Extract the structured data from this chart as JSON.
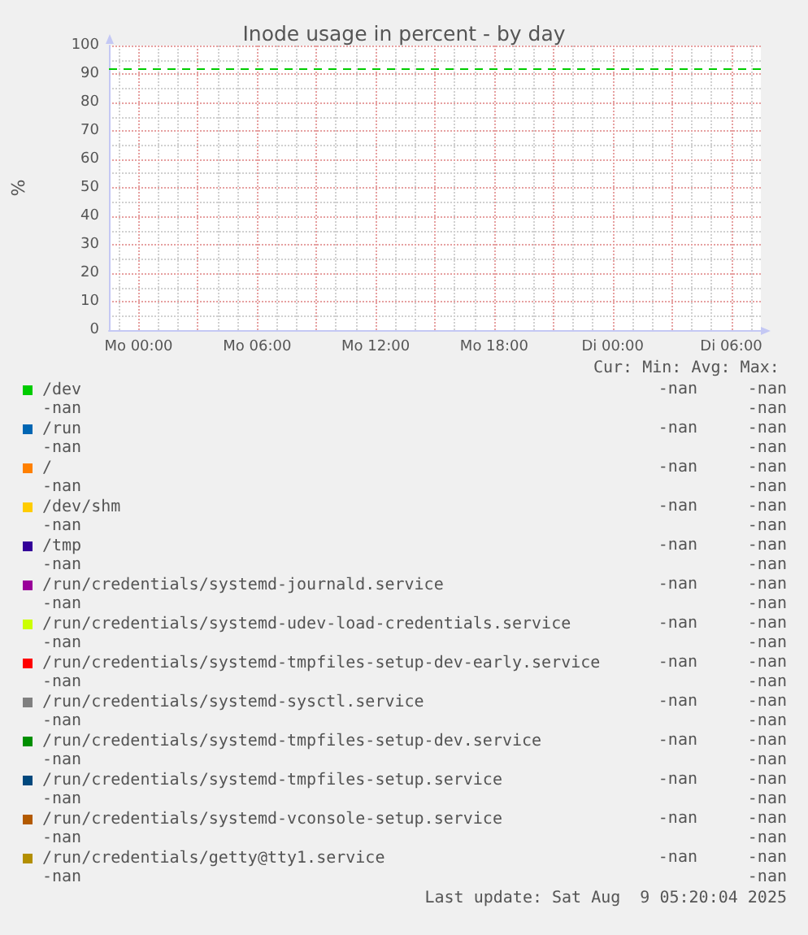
{
  "chart_data": {
    "type": "line",
    "title": "Inode usage in percent - by day",
    "ylabel": "%",
    "legend_title": "Cur: Min: Avg: Max:",
    "categories": [
      null,
      "Mo 00:00",
      null,
      null,
      null,
      null,
      null,
      "Mo 06:00",
      null,
      null,
      null,
      null,
      null,
      "Mo 12:00",
      null,
      null,
      null,
      null,
      null,
      "Mo 18:00",
      null,
      null,
      null,
      null,
      null,
      "Di 00:00",
      null,
      null,
      null,
      null,
      null,
      "Di 06:00",
      null
    ],
    "series": [
      {
        "name": "/dev",
        "color": "#00cc00",
        "values": [
          null,
          null,
          null,
          null,
          null,
          null,
          null,
          null,
          null,
          null,
          null,
          null,
          null,
          null,
          null,
          null,
          null,
          null,
          null,
          null,
          null,
          null,
          null,
          null,
          null,
          null,
          null,
          null,
          null,
          null,
          null,
          null,
          null
        ]
      },
      {
        "name": "/run",
        "color": "#0066b3",
        "values": [
          null,
          null,
          null,
          null,
          null,
          null,
          null,
          null,
          null,
          null,
          null,
          null,
          null,
          null,
          null,
          null,
          null,
          null,
          null,
          null,
          null,
          null,
          null,
          null,
          null,
          null,
          null,
          null,
          null,
          null,
          null,
          null,
          null
        ]
      },
      {
        "name": "/",
        "color": "#ff8000",
        "values": [
          null,
          null,
          null,
          null,
          null,
          null,
          null,
          null,
          null,
          null,
          null,
          null,
          null,
          null,
          null,
          null,
          null,
          null,
          null,
          null,
          null,
          null,
          null,
          null,
          null,
          null,
          null,
          null,
          null,
          null,
          null,
          null,
          null
        ]
      },
      {
        "name": "/dev/shm",
        "color": "#ffcc00",
        "values": [
          null,
          null,
          null,
          null,
          null,
          null,
          null,
          null,
          null,
          null,
          null,
          null,
          null,
          null,
          null,
          null,
          null,
          null,
          null,
          null,
          null,
          null,
          null,
          null,
          null,
          null,
          null,
          null,
          null,
          null,
          null,
          null,
          null
        ]
      },
      {
        "name": "/tmp",
        "color": "#330099",
        "values": [
          null,
          null,
          null,
          null,
          null,
          null,
          null,
          null,
          null,
          null,
          null,
          null,
          null,
          null,
          null,
          null,
          null,
          null,
          null,
          null,
          null,
          null,
          null,
          null,
          null,
          null,
          null,
          null,
          null,
          null,
          null,
          null,
          null
        ]
      },
      {
        "name": "/run/credentials/systemd-journald.service",
        "color": "#990099",
        "values": [
          null,
          null,
          null,
          null,
          null,
          null,
          null,
          null,
          null,
          null,
          null,
          null,
          null,
          null,
          null,
          null,
          null,
          null,
          null,
          null,
          null,
          null,
          null,
          null,
          null,
          null,
          null,
          null,
          null,
          null,
          null,
          null,
          null
        ]
      },
      {
        "name": "/run/credentials/systemd-udev-load-credentials.service",
        "color": "#ccff00",
        "values": [
          null,
          null,
          null,
          null,
          null,
          null,
          null,
          null,
          null,
          null,
          null,
          null,
          null,
          null,
          null,
          null,
          null,
          null,
          null,
          null,
          null,
          null,
          null,
          null,
          null,
          null,
          null,
          null,
          null,
          null,
          null,
          null,
          null
        ]
      },
      {
        "name": "/run/credentials/systemd-tmpfiles-setup-dev-early.service",
        "color": "#ff0000",
        "values": [
          null,
          null,
          null,
          null,
          null,
          null,
          null,
          null,
          null,
          null,
          null,
          null,
          null,
          null,
          null,
          null,
          null,
          null,
          null,
          null,
          null,
          null,
          null,
          null,
          null,
          null,
          null,
          null,
          null,
          null,
          null,
          null,
          null
        ]
      },
      {
        "name": "/run/credentials/systemd-sysctl.service",
        "color": "#808080",
        "values": [
          null,
          null,
          null,
          null,
          null,
          null,
          null,
          null,
          null,
          null,
          null,
          null,
          null,
          null,
          null,
          null,
          null,
          null,
          null,
          null,
          null,
          null,
          null,
          null,
          null,
          null,
          null,
          null,
          null,
          null,
          null,
          null,
          null
        ]
      },
      {
        "name": "/run/credentials/systemd-tmpfiles-setup-dev.service",
        "color": "#008f00",
        "values": [
          null,
          null,
          null,
          null,
          null,
          null,
          null,
          null,
          null,
          null,
          null,
          null,
          null,
          null,
          null,
          null,
          null,
          null,
          null,
          null,
          null,
          null,
          null,
          null,
          null,
          null,
          null,
          null,
          null,
          null,
          null,
          null,
          null
        ]
      },
      {
        "name": "/run/credentials/systemd-tmpfiles-setup.service",
        "color": "#00487d",
        "values": [
          null,
          null,
          null,
          null,
          null,
          null,
          null,
          null,
          null,
          null,
          null,
          null,
          null,
          null,
          null,
          null,
          null,
          null,
          null,
          null,
          null,
          null,
          null,
          null,
          null,
          null,
          null,
          null,
          null,
          null,
          null,
          null,
          null
        ]
      },
      {
        "name": "/run/credentials/systemd-vconsole-setup.service",
        "color": "#b35a00",
        "values": [
          null,
          null,
          null,
          null,
          null,
          null,
          null,
          null,
          null,
          null,
          null,
          null,
          null,
          null,
          null,
          null,
          null,
          null,
          null,
          null,
          null,
          null,
          null,
          null,
          null,
          null,
          null,
          null,
          null,
          null,
          null,
          null,
          null
        ]
      },
      {
        "name": "/run/credentials/getty@tty1.service",
        "color": "#b38f00",
        "values": [
          null,
          null,
          null,
          null,
          null,
          null,
          null,
          null,
          null,
          null,
          null,
          null,
          null,
          null,
          null,
          null,
          null,
          null,
          null,
          null,
          null,
          null,
          null,
          null,
          null,
          null,
          null,
          null,
          null,
          null,
          null,
          null,
          null
        ]
      }
    ],
    "ylim": [
      0,
      100
    ],
    "yticks": [
      0,
      10,
      20,
      30,
      40,
      50,
      60,
      70,
      80,
      90,
      100
    ],
    "grid": true,
    "legend": "bottom",
    "ref_lines": [
      {
        "axis": "y",
        "value": 92,
        "color": "#00cc00",
        "line_style": "dashed"
      }
    ],
    "annotations": [
      "-nan",
      "-nan",
      "-nan",
      "-nan",
      "-nan",
      "-nan",
      "-nan",
      "-nan",
      "-nan",
      "-nan",
      "-nan",
      "-nan",
      "-nan",
      "-nan",
      "-nan",
      "-nan",
      "-nan",
      "-nan",
      "-nan",
      "-nan",
      "-nan",
      "-nan",
      "-nan",
      "-nan",
      "-nan",
      "-nan",
      "-nan",
      "-nan",
      "-nan",
      "-nan",
      "-nan",
      "-nan",
      "-nan",
      "-nan",
      "-nan",
      "-nan",
      "-nan",
      "-nan",
      "-nan",
      "-nan",
      "-nan",
      "-nan",
      "-nan",
      "-nan",
      "-nan",
      "-nan",
      "-nan",
      "-nan",
      "-nan",
      "-nan",
      "-nan",
      "-nan",
      "Last update: Sat Aug  9 05:20:04 2025"
    ]
  }
}
